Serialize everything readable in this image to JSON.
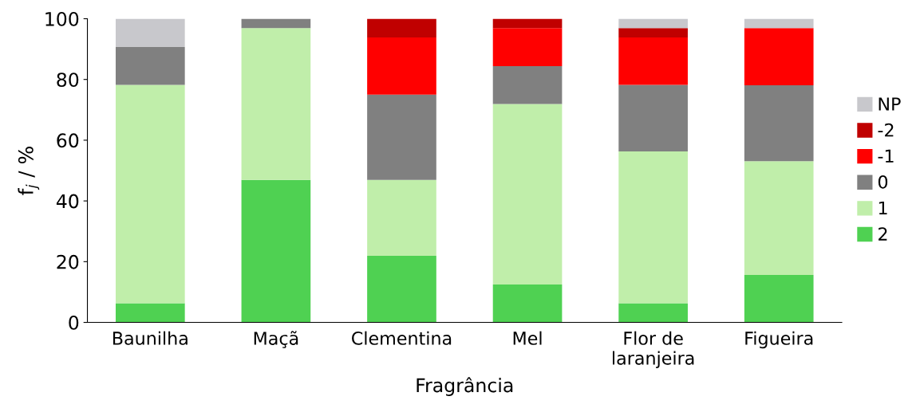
{
  "chart_data": {
    "type": "bar",
    "stacked": true,
    "xlabel": "Fragrância",
    "ylabel": "f$_{j}$ / %",
    "categories": [
      "Baunilha",
      "Maçã",
      "Clementina",
      "Mel",
      "Flor de\nlaranjeira",
      "Figueira"
    ],
    "series": [
      {
        "name": "2",
        "color": "#4fd152",
        "values": [
          6.3,
          46.9,
          21.9,
          12.5,
          6.3,
          15.6
        ]
      },
      {
        "name": "1",
        "color": "#c0eeaa",
        "values": [
          71.9,
          50.0,
          25.0,
          59.4,
          50.0,
          37.5
        ]
      },
      {
        "name": "0",
        "color": "#808080",
        "values": [
          12.5,
          3.1,
          28.1,
          12.5,
          21.9,
          25.0
        ]
      },
      {
        "name": "-1",
        "color": "#ff0000",
        "values": [
          null,
          null,
          18.8,
          12.5,
          15.6,
          18.8
        ]
      },
      {
        "name": "-2",
        "color": "#c00000",
        "values": [
          null,
          null,
          6.2,
          3.1,
          3.1,
          null
        ]
      },
      {
        "name": "NP",
        "color": "#c8c8cc",
        "values": [
          9.3,
          null,
          null,
          null,
          3.1,
          3.1
        ]
      }
    ],
    "ylim": [
      0,
      100
    ],
    "yticks": [
      0,
      20,
      40,
      60,
      80,
      100
    ],
    "grid": false,
    "legend": "right"
  }
}
